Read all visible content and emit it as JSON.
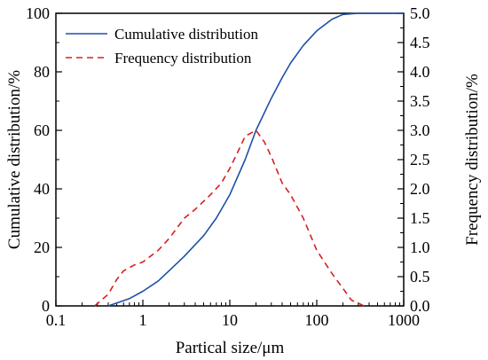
{
  "chart_data": {
    "type": "line",
    "title": "",
    "xlabel": "Partical size/μm",
    "ylabel_left": "Cumulative distribution/%",
    "ylabel_right": "Frequency distribution/%",
    "x_scale": "log",
    "xlim": [
      0.1,
      1000
    ],
    "ylim_left": [
      0,
      100
    ],
    "ylim_right": [
      0,
      5.0
    ],
    "x_ticks": [
      {
        "value": 0.1,
        "label": "0.1"
      },
      {
        "value": 1,
        "label": "1"
      },
      {
        "value": 10,
        "label": "10"
      },
      {
        "value": 100,
        "label": "100"
      },
      {
        "value": 1000,
        "label": "1000"
      }
    ],
    "y_left_ticks": [
      "0",
      "20",
      "40",
      "60",
      "80",
      "100"
    ],
    "y_right_ticks": [
      "0.0",
      "0.5",
      "1.0",
      "1.5",
      "2.0",
      "2.5",
      "3.0",
      "3.5",
      "4.0",
      "4.5",
      "5.0"
    ],
    "grid": false,
    "legend_position": "top-left",
    "series": [
      {
        "name": "Cumulative distribution",
        "axis": "left",
        "color": "#1f4fa8",
        "style": "solid",
        "points": [
          [
            0.4,
            0
          ],
          [
            0.5,
            1
          ],
          [
            0.7,
            2.5
          ],
          [
            1,
            5
          ],
          [
            1.5,
            8.5
          ],
          [
            2,
            12
          ],
          [
            3,
            17
          ],
          [
            5,
            24
          ],
          [
            7,
            30
          ],
          [
            10,
            38
          ],
          [
            15,
            50
          ],
          [
            20,
            60
          ],
          [
            30,
            71
          ],
          [
            40,
            78
          ],
          [
            50,
            83
          ],
          [
            70,
            89
          ],
          [
            100,
            94
          ],
          [
            150,
            98
          ],
          [
            200,
            99.6
          ],
          [
            300,
            100
          ],
          [
            500,
            100
          ],
          [
            1000,
            100
          ]
        ]
      },
      {
        "name": "Frequency distribution",
        "axis": "right",
        "color": "#d42020",
        "style": "dashed",
        "points": [
          [
            0.28,
            0
          ],
          [
            0.4,
            0.2
          ],
          [
            0.5,
            0.45
          ],
          [
            0.6,
            0.6
          ],
          [
            0.8,
            0.7
          ],
          [
            1,
            0.75
          ],
          [
            1.5,
            0.95
          ],
          [
            2,
            1.15
          ],
          [
            3,
            1.5
          ],
          [
            4,
            1.65
          ],
          [
            6,
            1.9
          ],
          [
            8,
            2.1
          ],
          [
            10,
            2.35
          ],
          [
            13,
            2.7
          ],
          [
            15,
            2.9
          ],
          [
            20,
            3.0
          ],
          [
            25,
            2.8
          ],
          [
            30,
            2.55
          ],
          [
            40,
            2.1
          ],
          [
            50,
            1.9
          ],
          [
            70,
            1.5
          ],
          [
            100,
            0.95
          ],
          [
            150,
            0.55
          ],
          [
            200,
            0.3
          ],
          [
            250,
            0.1
          ],
          [
            350,
            0
          ]
        ]
      }
    ]
  }
}
